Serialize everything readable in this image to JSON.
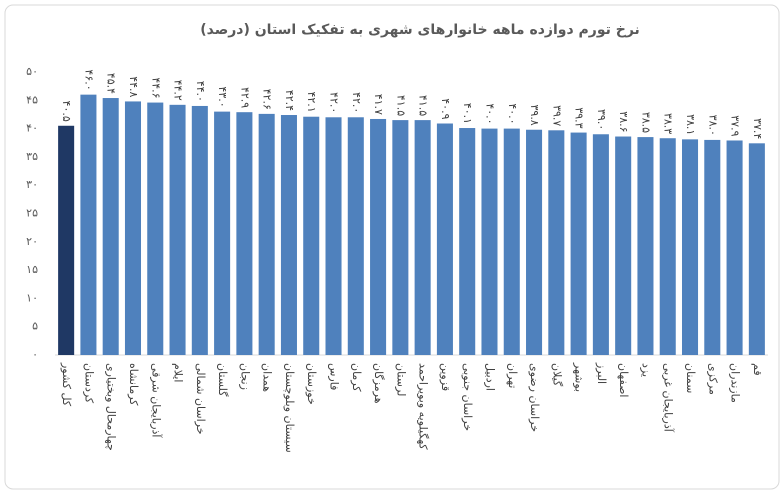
{
  "chart_data": {
    "type": "bar",
    "title": "نرخ تورم دوازده ماهه خانوارهای شهری به تفکیک استان (درصد)",
    "categories": [
      "کل کشور",
      "کردستان",
      "چهارمحال وبختیاری",
      "کرمانشاه",
      "آذربایجان شرقی",
      "ایلام",
      "خراسان شمالی",
      "گلستان",
      "زنجان",
      "همدان",
      "سیستان وبلوچستان",
      "خوزستان",
      "فارس",
      "کرمان",
      "هرمزگان",
      "لرستان",
      "کهگیلویه وبویراحمد",
      "قزوین",
      "خراسان جنوبی",
      "اردبیل",
      "تهران",
      "خراسان رضوی",
      "گیلان",
      "بوشهر",
      "البرز",
      "اصفهان",
      "یزد",
      "آذربایجان غربی",
      "سمنان",
      "مرکزی",
      "مازندران",
      "قم"
    ],
    "values": [
      40.5,
      46.0,
      45.4,
      44.8,
      44.6,
      44.2,
      44.0,
      43.0,
      42.9,
      42.6,
      42.4,
      42.1,
      42.0,
      42.0,
      41.7,
      41.5,
      41.5,
      40.9,
      40.1,
      40.0,
      40.0,
      39.8,
      39.7,
      39.3,
      39.0,
      38.6,
      38.5,
      38.3,
      38.1,
      38.0,
      37.9,
      37.4
    ],
    "value_labels": [
      "۴۰.۵",
      "۴۶.۰",
      "۴۵.۴",
      "۴۴.۸",
      "۴۴.۶",
      "۴۴.۲",
      "۴۴.۰",
      "۴۳.۰",
      "۴۲.۹",
      "۴۲.۶",
      "۴۲.۴",
      "۴۲.۱",
      "۴۲.۰",
      "۴۲.۰",
      "۴۱.۷",
      "۴۱.۵",
      "۴۱.۵",
      "۴۰.۹",
      "۴۰.۱",
      "۴۰.۰",
      "۴۰.۰",
      "۳۹.۸",
      "۳۹.۷",
      "۳۹.۳",
      "۳۹.۰",
      "۳۸.۶",
      "۳۸.۵",
      "۳۸.۳",
      "۳۸.۱",
      "۳۸.۰",
      "۳۷.۹",
      "۳۷.۴"
    ],
    "colors": [
      "#1f3864",
      "#4f81bd",
      "#4f81bd",
      "#4f81bd",
      "#4f81bd",
      "#4f81bd",
      "#4f81bd",
      "#4f81bd",
      "#4f81bd",
      "#4f81bd",
      "#4f81bd",
      "#4f81bd",
      "#4f81bd",
      "#4f81bd",
      "#4f81bd",
      "#4f81bd",
      "#4f81bd",
      "#4f81bd",
      "#4f81bd",
      "#4f81bd",
      "#4f81bd",
      "#4f81bd",
      "#4f81bd",
      "#4f81bd",
      "#4f81bd",
      "#4f81bd",
      "#4f81bd",
      "#4f81bd",
      "#4f81bd",
      "#4f81bd",
      "#4f81bd",
      "#4f81bd"
    ],
    "ylim": [
      0,
      50
    ],
    "yticks": [
      {
        "value": 0,
        "label": "۰"
      },
      {
        "value": 5,
        "label": "۵"
      },
      {
        "value": 10,
        "label": "۱۰"
      },
      {
        "value": 15,
        "label": "۱۵"
      },
      {
        "value": 20,
        "label": "۲۰"
      },
      {
        "value": 25,
        "label": "۲۵"
      },
      {
        "value": 30,
        "label": "۳۰"
      },
      {
        "value": 35,
        "label": "۳۵"
      },
      {
        "value": 40,
        "label": "۴۰"
      },
      {
        "value": 45,
        "label": "۴۵"
      },
      {
        "value": 50,
        "label": "۵۰"
      }
    ],
    "grid": false
  }
}
